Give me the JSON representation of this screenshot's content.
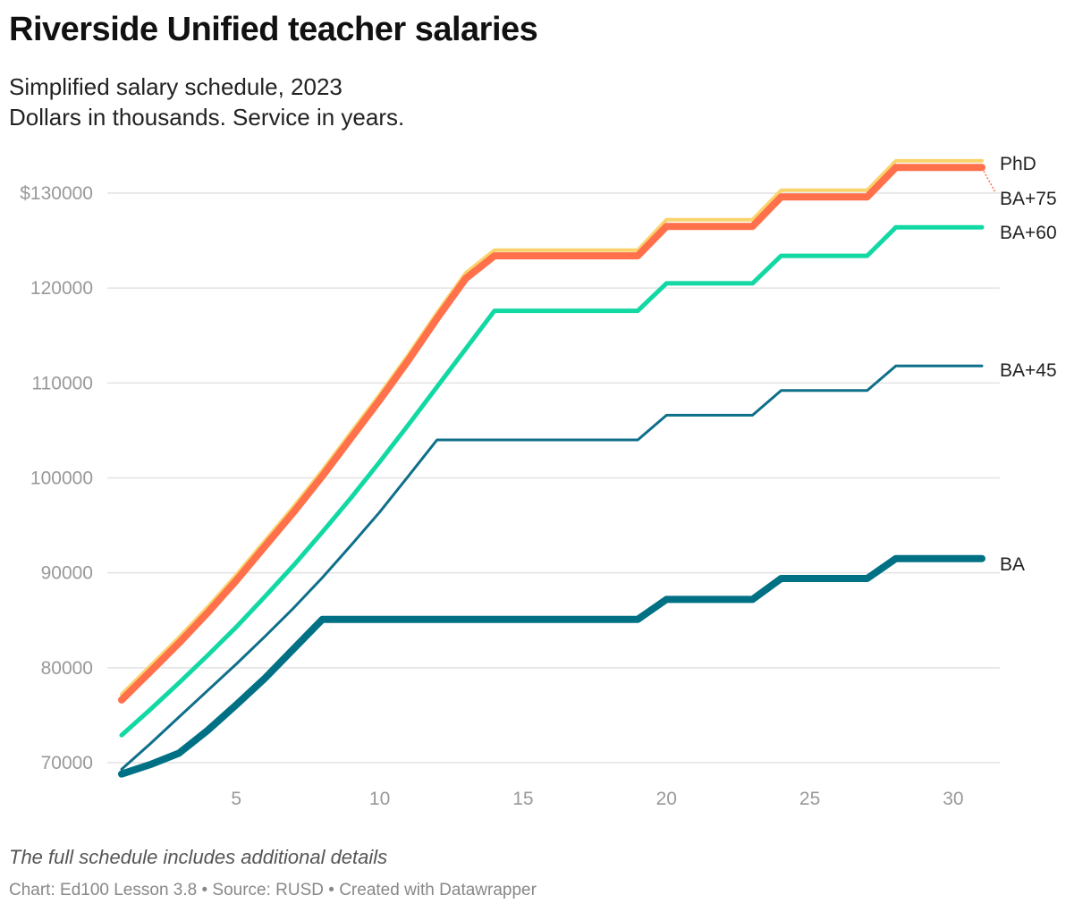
{
  "header": {
    "title": "Riverside Unified teacher salaries",
    "subtitle_line1": "Simplified salary schedule, 2023",
    "subtitle_line2": "Dollars in thousands. Service in years."
  },
  "footer": {
    "note": "The full schedule includes additional details",
    "credit": "Chart: Ed100 Lesson 3.8 • Source: RUSD • Created with Datawrapper"
  },
  "chart_data": {
    "type": "line",
    "title": "Riverside Unified teacher salaries",
    "xlabel": "",
    "ylabel": "",
    "xlim": [
      0.5,
      32
    ],
    "ylim": [
      67000,
      136000
    ],
    "x_ticks": [
      5,
      10,
      15,
      20,
      25,
      30
    ],
    "x_tick_labels": [
      "5",
      "10",
      "15",
      "20",
      "25",
      "30"
    ],
    "y_ticks": [
      70000,
      80000,
      90000,
      100000,
      110000,
      120000,
      130000
    ],
    "y_tick_labels": [
      "70000",
      "80000",
      "90000",
      "100000",
      "110000",
      "120000",
      "$130000"
    ],
    "grid": true,
    "legend": "direct labels at line ends (right)",
    "series": [
      {
        "name": "PhD",
        "color": "#f9d36b",
        "width": 4,
        "x": [
          1,
          2,
          3,
          4,
          5,
          6,
          7,
          8,
          9,
          10,
          11,
          12,
          13,
          14,
          19,
          20,
          23,
          24,
          27,
          28,
          31
        ],
        "y": [
          77200,
          80200,
          83200,
          86400,
          89800,
          93400,
          97000,
          100800,
          104800,
          108800,
          113000,
          117400,
          121600,
          124000,
          124000,
          127200,
          127200,
          130300,
          130300,
          133400,
          133400
        ]
      },
      {
        "name": "BA+75",
        "color": "#ff704b",
        "width": 8,
        "x": [
          1,
          2,
          3,
          4,
          5,
          6,
          7,
          8,
          9,
          10,
          11,
          12,
          13,
          14,
          19,
          20,
          23,
          24,
          27,
          28,
          31
        ],
        "y": [
          76600,
          79600,
          82600,
          85800,
          89200,
          92800,
          96400,
          100200,
          104200,
          108200,
          112400,
          116800,
          121000,
          123400,
          123400,
          126500,
          126500,
          129600,
          129600,
          132700,
          132700
        ]
      },
      {
        "name": "BA+60",
        "color": "#12d8a3",
        "width": 5,
        "x": [
          1,
          2,
          3,
          4,
          5,
          6,
          7,
          8,
          9,
          10,
          11,
          12,
          13,
          14,
          19,
          20,
          23,
          24,
          27,
          28,
          31
        ],
        "y": [
          72900,
          75600,
          78400,
          81300,
          84300,
          87500,
          90800,
          94300,
          97900,
          101700,
          105600,
          109600,
          113600,
          117600,
          117600,
          120500,
          120500,
          123400,
          123400,
          126400,
          126400
        ]
      },
      {
        "name": "BA+45",
        "color": "#0e6f8a",
        "width": 3,
        "x": [
          1,
          2,
          3,
          4,
          5,
          6,
          7,
          8,
          9,
          10,
          11,
          12,
          19,
          20,
          23,
          24,
          27,
          28,
          31
        ],
        "y": [
          69300,
          72000,
          74800,
          77600,
          80400,
          83300,
          86300,
          89500,
          92900,
          96400,
          100200,
          104000,
          104000,
          106600,
          106600,
          109200,
          109200,
          111800,
          111800
        ]
      },
      {
        "name": "BA",
        "color": "#007185",
        "width": 8,
        "x": [
          1,
          2,
          3,
          4,
          5,
          6,
          7,
          8,
          19,
          20,
          23,
          24,
          27,
          28,
          31
        ],
        "y": [
          68800,
          69800,
          71000,
          73400,
          76100,
          78900,
          82000,
          85100,
          85100,
          87200,
          87200,
          89400,
          89400,
          91500,
          91500
        ]
      }
    ]
  }
}
